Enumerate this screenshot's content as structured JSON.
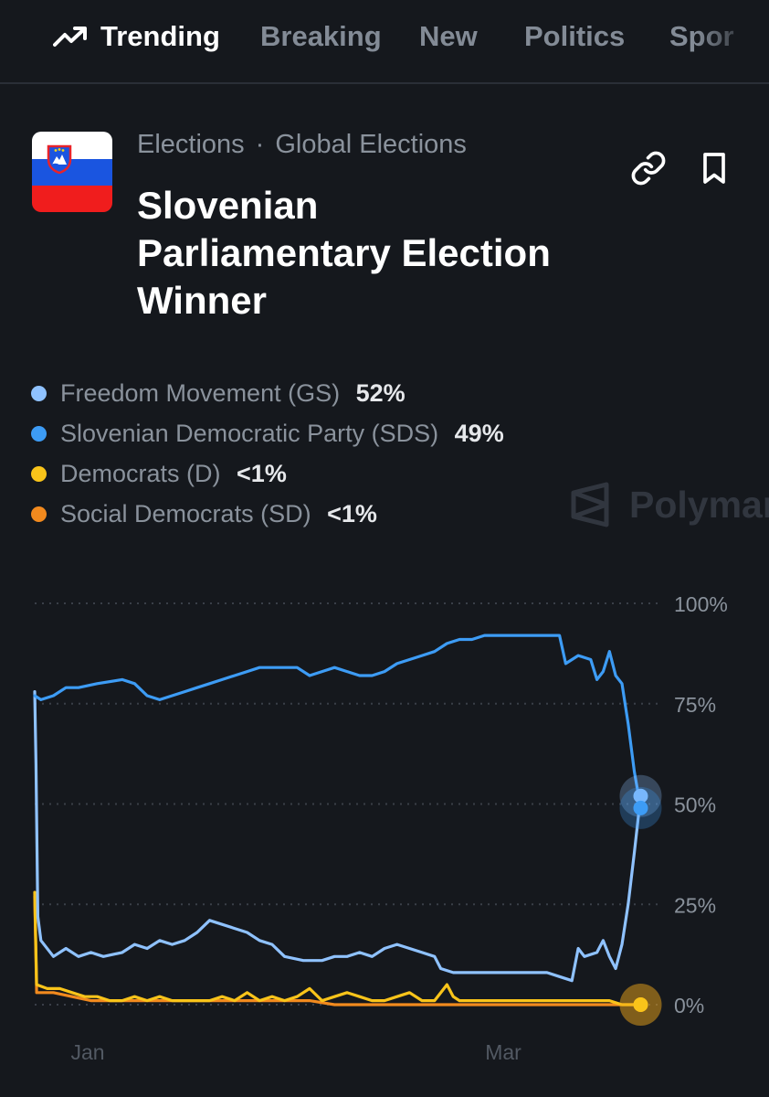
{
  "nav": {
    "items": [
      {
        "label": "Trending",
        "icon": "trending-up-icon",
        "active": true
      },
      {
        "label": "Breaking"
      },
      {
        "label": "New"
      },
      {
        "label": "Politics"
      },
      {
        "label": "Spor"
      }
    ]
  },
  "market": {
    "flag_icon": "slovenia-flag-icon",
    "breadcrumb": [
      "Elections",
      "Global Elections"
    ],
    "breadcrumb_separator": "·",
    "title_lines": [
      "Slovenian",
      "Parliamentary Election",
      "Winner"
    ],
    "actions": [
      "link-icon",
      "bookmark-icon"
    ]
  },
  "watermark": {
    "text": "Polymar"
  },
  "legend": [
    {
      "name": "Freedom Movement (GS)",
      "value": "52%",
      "color": "#8fc2ff"
    },
    {
      "name": "Slovenian Democratic Party (SDS)",
      "value": "49%",
      "color": "#3d9cf5"
    },
    {
      "name": "Democrats (D)",
      "value": "<1%",
      "color": "#f9c41a"
    },
    {
      "name": "Social Democrats (SD)",
      "value": "<1%",
      "color": "#f28a1e"
    }
  ],
  "chart_data": {
    "type": "line",
    "x_ticks": [
      "Jan",
      "Mar"
    ],
    "y_ticks": [
      "100%",
      "75%",
      "50%",
      "25%",
      "0%"
    ],
    "ylim": [
      0,
      100
    ],
    "grid": true,
    "series": [
      {
        "name": "Freedom Movement (GS)",
        "color": "#8fc2ff",
        "points": [
          [
            0,
            78
          ],
          [
            0.2,
            60
          ],
          [
            0.5,
            22
          ],
          [
            1,
            16
          ],
          [
            3,
            12
          ],
          [
            5,
            14
          ],
          [
            7,
            12
          ],
          [
            9,
            13
          ],
          [
            11,
            12
          ],
          [
            14,
            13
          ],
          [
            16,
            15
          ],
          [
            18,
            14
          ],
          [
            20,
            16
          ],
          [
            22,
            15
          ],
          [
            24,
            16
          ],
          [
            26,
            18
          ],
          [
            28,
            21
          ],
          [
            30,
            20
          ],
          [
            32,
            19
          ],
          [
            34,
            18
          ],
          [
            36,
            16
          ],
          [
            38,
            15
          ],
          [
            40,
            12
          ],
          [
            43,
            11
          ],
          [
            46,
            11
          ],
          [
            48,
            12
          ],
          [
            50,
            12
          ],
          [
            52,
            13
          ],
          [
            54,
            12
          ],
          [
            56,
            14
          ],
          [
            58,
            15
          ],
          [
            60,
            14
          ],
          [
            62,
            13
          ],
          [
            64,
            12
          ],
          [
            65,
            9
          ],
          [
            67,
            8
          ],
          [
            70,
            8
          ],
          [
            73,
            8
          ],
          [
            76,
            8
          ],
          [
            79,
            8
          ],
          [
            82,
            8
          ],
          [
            84,
            7
          ],
          [
            86,
            6
          ],
          [
            87,
            14
          ],
          [
            88,
            12
          ],
          [
            90,
            13
          ],
          [
            91,
            16
          ],
          [
            92,
            12
          ],
          [
            93,
            9
          ],
          [
            94,
            15
          ],
          [
            95,
            25
          ],
          [
            96,
            38
          ],
          [
            97,
            52
          ]
        ],
        "end_value": 52
      },
      {
        "name": "Slovenian Democratic Party (SDS)",
        "color": "#3d9cf5",
        "points": [
          [
            0,
            77
          ],
          [
            1,
            76
          ],
          [
            3,
            77
          ],
          [
            5,
            79
          ],
          [
            7,
            79
          ],
          [
            10,
            80
          ],
          [
            14,
            81
          ],
          [
            16,
            80
          ],
          [
            18,
            77
          ],
          [
            20,
            76
          ],
          [
            22,
            77
          ],
          [
            24,
            78
          ],
          [
            26,
            79
          ],
          [
            28,
            80
          ],
          [
            30,
            81
          ],
          [
            32,
            82
          ],
          [
            34,
            83
          ],
          [
            36,
            84
          ],
          [
            38,
            84
          ],
          [
            40,
            84
          ],
          [
            42,
            84
          ],
          [
            44,
            82
          ],
          [
            46,
            83
          ],
          [
            48,
            84
          ],
          [
            50,
            83
          ],
          [
            52,
            82
          ],
          [
            54,
            82
          ],
          [
            56,
            83
          ],
          [
            58,
            85
          ],
          [
            60,
            86
          ],
          [
            62,
            87
          ],
          [
            64,
            88
          ],
          [
            66,
            90
          ],
          [
            68,
            91
          ],
          [
            70,
            91
          ],
          [
            72,
            92
          ],
          [
            74,
            92
          ],
          [
            76,
            92
          ],
          [
            78,
            92
          ],
          [
            80,
            92
          ],
          [
            82,
            92
          ],
          [
            84,
            92
          ],
          [
            85,
            85
          ],
          [
            87,
            87
          ],
          [
            89,
            86
          ],
          [
            90,
            81
          ],
          [
            91,
            83
          ],
          [
            92,
            88
          ],
          [
            93,
            82
          ],
          [
            94,
            80
          ],
          [
            95,
            70
          ],
          [
            96,
            58
          ],
          [
            97,
            49
          ]
        ],
        "end_value": 49
      },
      {
        "name": "Democrats (D)",
        "color": "#f9c41a",
        "points": [
          [
            0,
            28
          ],
          [
            0.3,
            5
          ],
          [
            2,
            4
          ],
          [
            4,
            4
          ],
          [
            6,
            3
          ],
          [
            8,
            2
          ],
          [
            10,
            2
          ],
          [
            12,
            1
          ],
          [
            14,
            1
          ],
          [
            16,
            2
          ],
          [
            18,
            1
          ],
          [
            20,
            2
          ],
          [
            22,
            1
          ],
          [
            24,
            1
          ],
          [
            26,
            1
          ],
          [
            28,
            1
          ],
          [
            30,
            2
          ],
          [
            32,
            1
          ],
          [
            34,
            3
          ],
          [
            36,
            1
          ],
          [
            38,
            2
          ],
          [
            40,
            1
          ],
          [
            42,
            2
          ],
          [
            44,
            4
          ],
          [
            46,
            1
          ],
          [
            48,
            2
          ],
          [
            50,
            3
          ],
          [
            52,
            2
          ],
          [
            54,
            1
          ],
          [
            56,
            1
          ],
          [
            58,
            2
          ],
          [
            60,
            3
          ],
          [
            62,
            1
          ],
          [
            64,
            1
          ],
          [
            66,
            5
          ],
          [
            67,
            2
          ],
          [
            68,
            1
          ],
          [
            70,
            1
          ],
          [
            72,
            1
          ],
          [
            74,
            1
          ],
          [
            76,
            1
          ],
          [
            78,
            1
          ],
          [
            80,
            1
          ],
          [
            82,
            1
          ],
          [
            84,
            1
          ],
          [
            86,
            1
          ],
          [
            88,
            1
          ],
          [
            90,
            1
          ],
          [
            92,
            1
          ],
          [
            94,
            0
          ],
          [
            97,
            0
          ]
        ],
        "end_value": 0
      },
      {
        "name": "Social Democrats (SD)",
        "color": "#f28a1e",
        "points": [
          [
            0,
            27
          ],
          [
            0.3,
            3
          ],
          [
            3,
            3
          ],
          [
            6,
            2
          ],
          [
            9,
            1
          ],
          [
            12,
            1
          ],
          [
            16,
            1
          ],
          [
            20,
            1
          ],
          [
            24,
            1
          ],
          [
            28,
            1
          ],
          [
            32,
            1
          ],
          [
            36,
            1
          ],
          [
            40,
            1
          ],
          [
            44,
            1
          ],
          [
            48,
            0
          ],
          [
            52,
            0
          ],
          [
            56,
            0
          ],
          [
            60,
            0
          ],
          [
            64,
            0
          ],
          [
            68,
            0
          ],
          [
            72,
            0
          ],
          [
            76,
            0
          ],
          [
            80,
            0
          ],
          [
            84,
            0
          ],
          [
            88,
            0
          ],
          [
            92,
            0
          ],
          [
            97,
            0
          ]
        ],
        "end_value": 0
      }
    ]
  }
}
